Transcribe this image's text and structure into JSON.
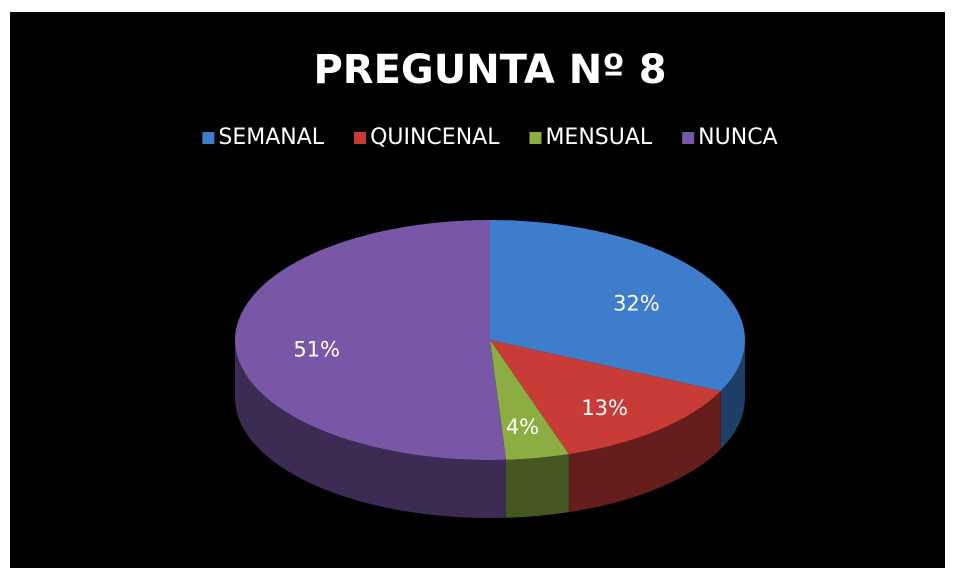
{
  "chart_data": {
    "type": "pie",
    "title": "PREGUNTA Nº 8",
    "categories": [
      "SEMANAL",
      "QUINCENAL",
      "MENSUAL",
      "NUNCA"
    ],
    "values": [
      32,
      13,
      4,
      51
    ],
    "value_labels": [
      "32%",
      "13%",
      "4%",
      "51%"
    ],
    "colors": [
      "#3e7ccc",
      "#c93b37",
      "#8cad41",
      "#7757a6"
    ],
    "legend": "top"
  }
}
